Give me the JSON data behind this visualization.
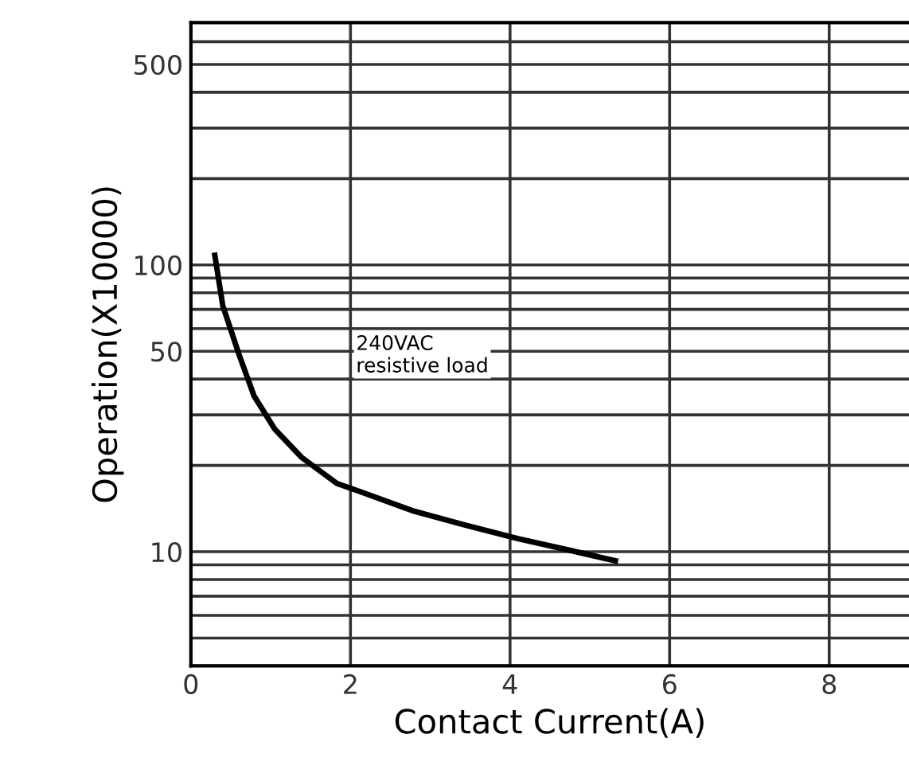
{
  "chart_data": {
    "type": "line",
    "xlabel": "Contact Current(A)",
    "ylabel": "Operation(X10000)",
    "annotations": [
      "240VAC\nresistive load"
    ],
    "series": [
      {
        "color": "#000000",
        "x": [
          0.3,
          0.4,
          0.6,
          0.79,
          1.05,
          1.39,
          1.83,
          2.12,
          2.78,
          3.43,
          4.1,
          4.76,
          5.32
        ],
        "values": [
          108,
          72,
          49,
          35,
          26.8,
          21.3,
          17.3,
          16.2,
          13.9,
          12.4,
          11.1,
          10.1,
          9.3
        ]
      }
    ],
    "xlim": [
      0,
      9
    ],
    "xticks": [
      0,
      2,
      4,
      6,
      8
    ],
    "ylim": [
      4,
      700
    ],
    "yticks": [
      10,
      50,
      100,
      500
    ],
    "log": "y",
    "grid": true,
    "marker": "none",
    "line_style": "solid",
    "legend": false
  }
}
